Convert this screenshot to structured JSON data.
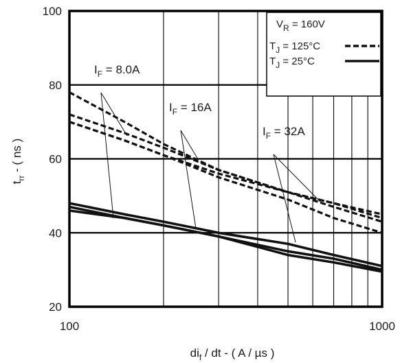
{
  "chart_data": {
    "type": "line",
    "x_scale": "log",
    "xlim": [
      100,
      1000
    ],
    "ylim": [
      20,
      100
    ],
    "grid": true,
    "legend_position": "top-right",
    "x_ticks": [
      "100",
      "1000"
    ],
    "y_ticks": [
      "20",
      "40",
      "60",
      "80",
      "100"
    ],
    "xlabel": {
      "main": "di",
      "sub": "f",
      "rest": " / dt - ( A / µs )"
    },
    "ylabel": {
      "main": "t",
      "sub": "rr",
      "rest": " - ( ns )"
    },
    "legend": {
      "header": {
        "main": "V",
        "sub": "R",
        "rest": " = 160V"
      },
      "entries": [
        {
          "main": "T",
          "sub": "J",
          "rest": " = 125°C",
          "style": "dashed"
        },
        {
          "main": "T",
          "sub": "J",
          "rest": " =  25°C",
          "style": "solid"
        }
      ]
    },
    "annotations": [
      {
        "main": "I",
        "sub": "F",
        "rest": " = 8.0A"
      },
      {
        "main": "I",
        "sub": "F",
        "rest": " = 16A"
      },
      {
        "main": "I",
        "sub": "F",
        "rest": " = 32A"
      }
    ],
    "series": [
      {
        "condition": "IF = 8.0A, TJ = 125°C",
        "style": "dashed",
        "x": [
          100,
          150,
          200,
          300,
          500,
          700,
          1000
        ],
        "y": [
          78,
          70,
          64,
          57,
          51,
          48,
          45
        ]
      },
      {
        "condition": "IF = 16A, TJ = 125°C",
        "style": "dashed",
        "x": [
          100,
          150,
          200,
          300,
          500,
          700,
          1000
        ],
        "y": [
          72,
          67,
          63,
          57,
          51,
          48,
          44
        ]
      },
      {
        "condition": "IF = 32A, TJ = 125°C",
        "style": "dashed",
        "x": [
          100,
          150,
          200,
          300,
          500,
          700,
          1000
        ],
        "y": [
          70,
          65,
          61,
          56,
          51,
          47,
          43
        ]
      },
      {
        "condition": "IF = 32A, TJ = 125°C (lower)",
        "style": "dashed",
        "x": [
          100,
          150,
          200,
          300,
          500,
          700,
          1000
        ],
        "y": [
          70,
          65,
          61,
          55,
          49,
          44,
          40
        ]
      },
      {
        "condition": "IF = 8.0A, TJ = 25°C",
        "style": "solid",
        "x": [
          100,
          150,
          200,
          300,
          500,
          700,
          1000
        ],
        "y": [
          48,
          45,
          43,
          40,
          37,
          34,
          31
        ]
      },
      {
        "condition": "IF = 16A, TJ = 25°C",
        "style": "solid",
        "x": [
          100,
          150,
          200,
          300,
          500,
          700,
          1000
        ],
        "y": [
          47,
          44,
          42,
          39,
          35,
          33,
          30
        ]
      },
      {
        "condition": "IF = 32A, TJ = 25°C",
        "style": "solid",
        "x": [
          100,
          150,
          200,
          300,
          500,
          700,
          1000
        ],
        "y": [
          46,
          44,
          42,
          39,
          34,
          32,
          29.5
        ]
      }
    ]
  }
}
